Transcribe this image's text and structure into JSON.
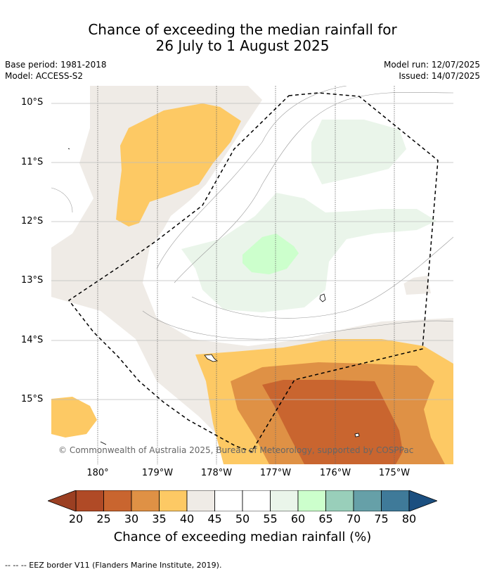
{
  "title": {
    "line1": "Chance of exceeding the median rainfall for",
    "line2": "26 July to 1 August 2025"
  },
  "meta": {
    "base_period": "Base period: 1981-2018",
    "model": "Model: ACCESS-S2",
    "model_run": "Model run: 12/07/2025",
    "issued": "Issued: 14/07/2025"
  },
  "axes": {
    "lat_labels": [
      "10°S",
      "11°S",
      "12°S",
      "13°S",
      "14°S",
      "15°S"
    ],
    "lon_labels": [
      "180°",
      "179°W",
      "178°W",
      "177°W",
      "176°W",
      "175°W"
    ]
  },
  "copyright": "© Commonwealth of Australia 2025, Bureau of Meteorology, supported by COSPPac",
  "colorbar": {
    "ticks": [
      "20",
      "25",
      "30",
      "35",
      "40",
      "45",
      "50",
      "55",
      "60",
      "65",
      "70",
      "75",
      "80"
    ],
    "colors": [
      "#9b3f22",
      "#b04a26",
      "#c9652f",
      "#df9145",
      "#fdc964",
      "#efebe6",
      "#ffffff",
      "#ffffff",
      "#eaf5ea",
      "#ccffcc",
      "#99cfba",
      "#66a0a8",
      "#3f7a99",
      "#1b4f80"
    ],
    "label": "Chance of exceeding median rainfall (%)"
  },
  "footer": "-- -- -- EEZ border V11 (Flanders Marine Institute, 2019).",
  "map": {
    "palette": {
      "bin_35_40": "#fdc964",
      "bin_30_35": "#df9145",
      "bin_25_30": "#c9652f",
      "bin_40_45": "#efebe6",
      "bin_55_60": "#eaf5ea",
      "bin_60_65": "#ccffcc"
    }
  }
}
